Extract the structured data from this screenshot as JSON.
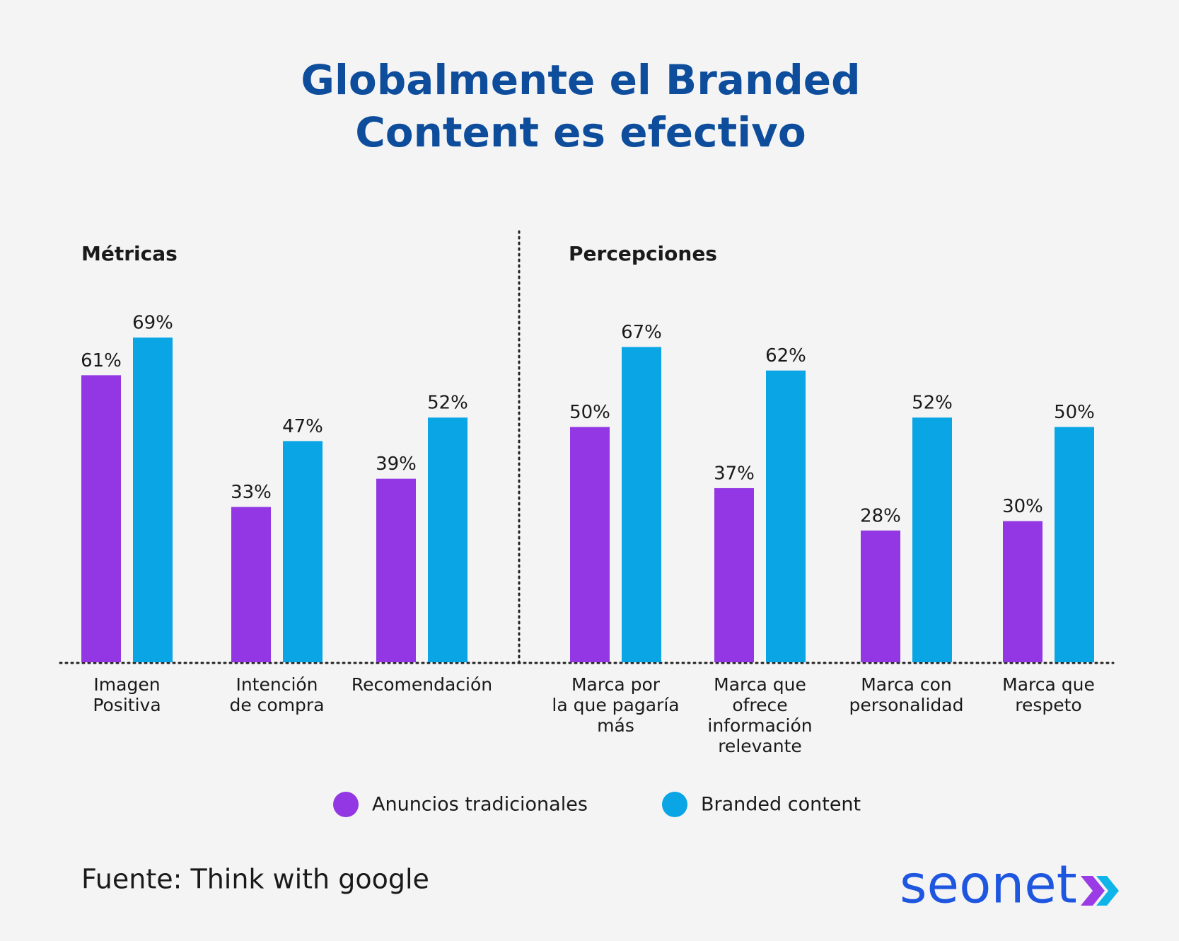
{
  "title": "Globalmente el Branded\nContent es efectivo",
  "chart_data": [
    {
      "type": "bar",
      "title": "Métricas",
      "categories": [
        "Imagen\nPositiva",
        "Intención\nde compra",
        "Recomendación"
      ],
      "series": [
        {
          "color": "#9237e3",
          "values": [
            61,
            33,
            39
          ],
          "value_labels": [
            "61%",
            "33%",
            "39%"
          ]
        },
        {
          "color": "#09a5e4",
          "values": [
            69,
            47,
            52
          ],
          "value_labels": [
            "69%",
            "47%",
            "52%"
          ]
        }
      ]
    },
    {
      "type": "bar",
      "title": "Percepciones",
      "categories": [
        "Marca por\nla que pagaría\nmás",
        "Marca que\nofrece\ninformación\nrelevante",
        "Marca con\npersonalidad",
        "Marca que\nrespeto"
      ],
      "series": [
        {
          "color": "#9237e3",
          "values": [
            50,
            37,
            28,
            30
          ],
          "value_labels": [
            "50%",
            "37%",
            "28%",
            "30%"
          ]
        },
        {
          "color": "#09a5e4",
          "values": [
            67,
            62,
            52,
            50
          ],
          "value_labels": [
            "67%",
            "62%",
            "52%",
            "50%"
          ]
        }
      ]
    }
  ],
  "legend": [
    {
      "name": "Anuncios tradicionales",
      "color": "#9237e3"
    },
    {
      "name": "Branded content",
      "color": "#09a5e4"
    }
  ],
  "source": "Fuente: Think with google",
  "logo": "seonet"
}
